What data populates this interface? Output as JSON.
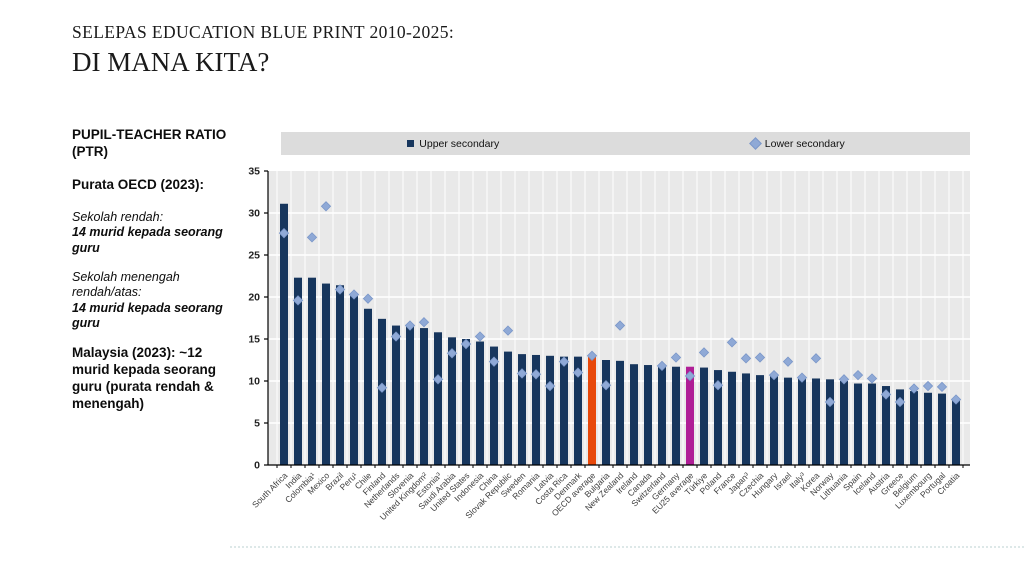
{
  "slide": {
    "title_line1": "SELEPAS EDUCATION BLUE PRINT 2010-2025:",
    "title_line2": "DI MANA KITA?"
  },
  "sidebar": {
    "heading": "PUPIL-TEACHER RATIO (PTR)",
    "oecd_heading": "Purata OECD (2023):",
    "primary_label": "Sekolah rendah:",
    "primary_value": "14 murid kepada seorang guru",
    "secondary_label": "Sekolah menengah rendah/atas:",
    "secondary_value": "14 murid kepada seorang guru",
    "malaysia_value": "Malaysia (2023): ~12 murid kepada seorang guru (purata rendah & menengah)"
  },
  "chart_data": {
    "type": "bar",
    "title": "",
    "xlabel": "",
    "ylabel": "",
    "ylim": [
      0,
      35
    ],
    "yticks": [
      0,
      5,
      10,
      15,
      20,
      25,
      30,
      35
    ],
    "grid": true,
    "legend_position": "top",
    "legend": [
      "Upper secondary",
      "Lower secondary"
    ],
    "categories": [
      "South Africa",
      "India",
      "Colombia¹",
      "Mexico",
      "Brazil",
      "Peru¹",
      "Chile",
      "Finland",
      "Netherlands",
      "Slovenia",
      "United Kingdom²",
      "Estonia³",
      "Saudi Arabia",
      "United States",
      "Indonesia",
      "China",
      "Slovak Republic",
      "Sweden",
      "Romania",
      "Latvia",
      "Costa Rica",
      "Denmark",
      "OECD average",
      "Bulgaria",
      "New Zealand",
      "Ireland",
      "Canada",
      "Switzerland",
      "Germany",
      "EU25 average",
      "Türkiye",
      "Poland",
      "France",
      "Japan³",
      "Czechia",
      "Hungary",
      "Israel",
      "Italy³",
      "Korea",
      "Norway",
      "Lithuania",
      "Spain",
      "Iceland",
      "Austria",
      "Greece",
      "Belgium",
      "Luxembourg",
      "Portugal",
      "Croatia"
    ],
    "series": [
      {
        "name": "Upper secondary",
        "type": "bar",
        "values": [
          31.1,
          22.3,
          22.3,
          21.6,
          21.4,
          20.1,
          18.6,
          17.4,
          16.6,
          16.5,
          16.3,
          15.8,
          15.2,
          15.0,
          14.7,
          14.1,
          13.5,
          13.2,
          13.1,
          13.0,
          12.9,
          12.9,
          12.9,
          12.5,
          12.4,
          12.0,
          11.9,
          11.8,
          11.7,
          11.7,
          11.6,
          11.3,
          11.1,
          10.9,
          10.7,
          10.6,
          10.4,
          10.3,
          10.3,
          10.2,
          10.0,
          9.7,
          9.7,
          9.4,
          9.0,
          8.8,
          8.6,
          8.5,
          7.9
        ]
      },
      {
        "name": "Lower secondary",
        "type": "scatter",
        "values": [
          27.6,
          19.6,
          27.1,
          30.8,
          20.9,
          20.3,
          19.8,
          9.2,
          15.3,
          16.6,
          17.0,
          10.2,
          13.3,
          14.4,
          15.3,
          12.3,
          16.0,
          10.9,
          10.8,
          9.4,
          12.3,
          11.0,
          13.0,
          9.5,
          16.6,
          null,
          null,
          11.8,
          12.8,
          10.6,
          13.4,
          9.5,
          14.6,
          12.7,
          12.8,
          10.7,
          12.3,
          10.4,
          12.7,
          7.5,
          10.2,
          10.7,
          10.3,
          8.4,
          7.5,
          9.1,
          9.4,
          9.3,
          7.8
        ]
      }
    ],
    "highlight_bars": {
      "OECD average": "#e8490b",
      "EU25 average": "#b01e96"
    },
    "colors": {
      "bar": "#17365d",
      "marker_fill": "#8fa9d6",
      "marker_stroke": "#7b97c9",
      "plot_bg": "#e9e9e9",
      "gridline": "#ffffff",
      "legend_bg": "#dcdcdc",
      "axis": "#000000",
      "tick_label": "#222222",
      "cat_label": "#404040"
    }
  }
}
